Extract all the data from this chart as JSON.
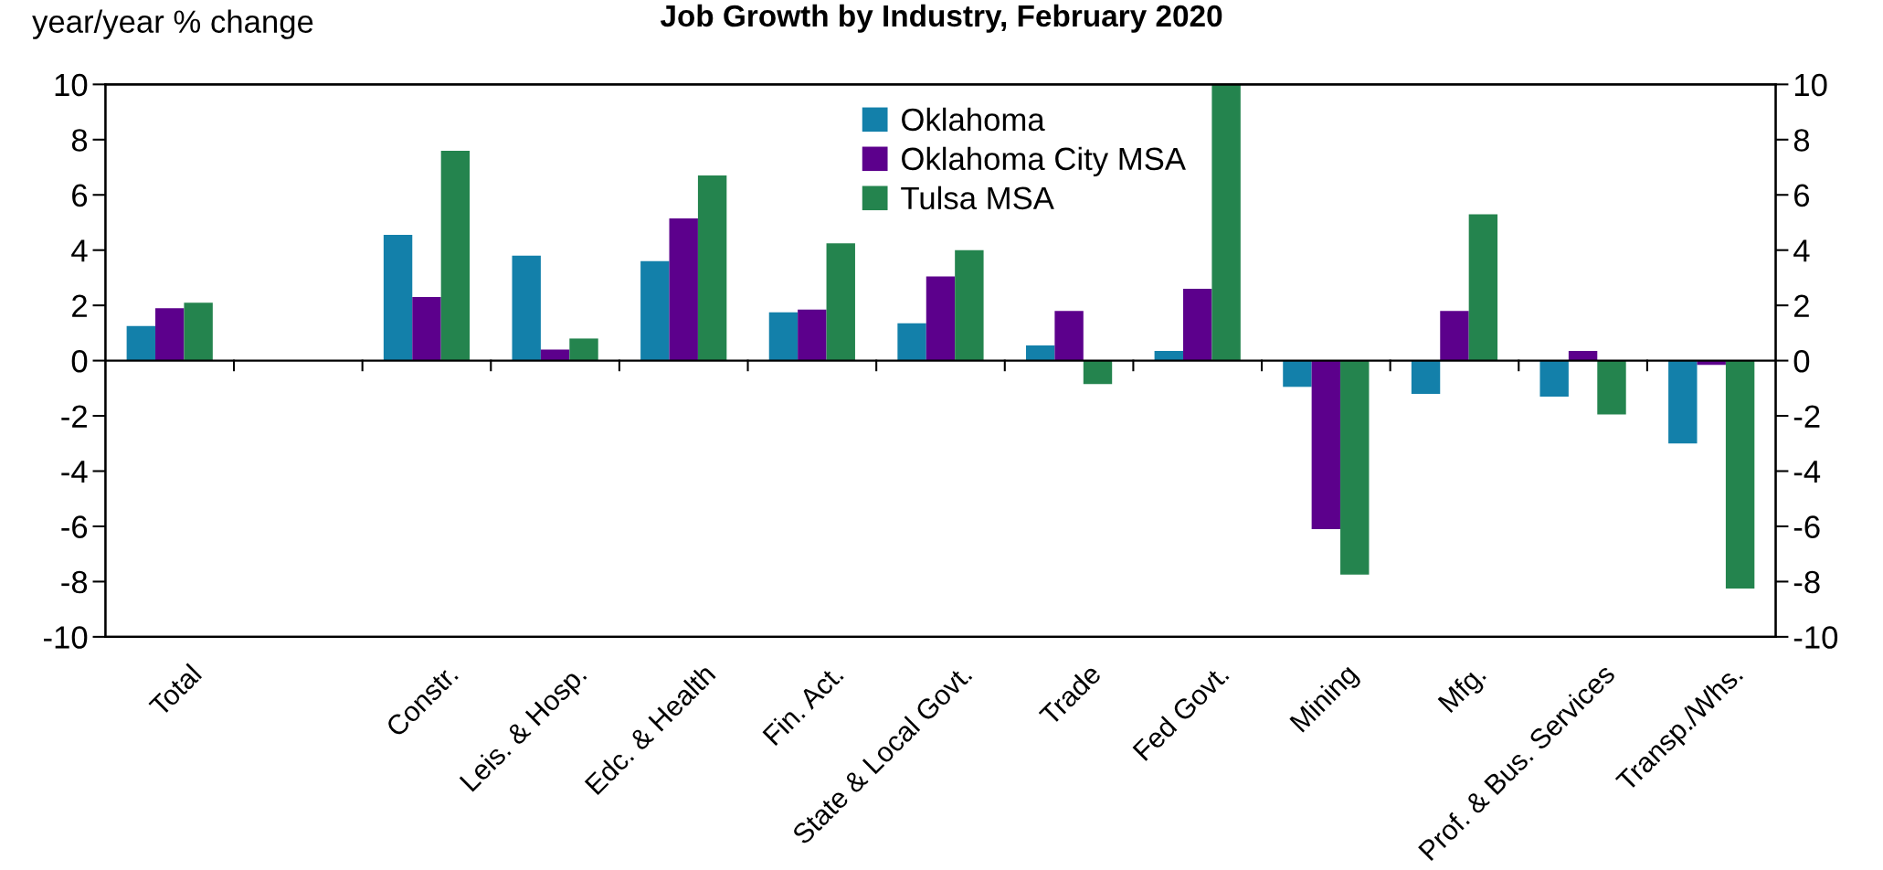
{
  "chart_data": {
    "type": "bar",
    "title": "Job Growth by Industry, February 2020",
    "ylabel": "year/year % change",
    "categories": [
      "Total",
      null,
      "Constr.",
      "Leis. & Hosp.",
      "Edc. & Health",
      "Fin. Act.",
      "State & Local Govt.",
      "Trade",
      "Fed Govt.",
      "Mining",
      "Mfg.",
      "Prof. & Bus. Services",
      "Transp./Whs."
    ],
    "series": [
      {
        "name": "Oklahoma",
        "color": "#1380aa",
        "values": [
          1.25,
          null,
          4.55,
          3.8,
          3.6,
          1.75,
          1.35,
          0.55,
          0.35,
          -0.95,
          -1.2,
          -1.3,
          -3.0
        ]
      },
      {
        "name": "Oklahoma City MSA",
        "color": "#5c008c",
        "values": [
          1.9,
          null,
          2.3,
          0.4,
          5.15,
          1.85,
          3.05,
          1.8,
          2.6,
          -6.1,
          1.8,
          0.35,
          -0.15
        ]
      },
      {
        "name": "Tulsa MSA",
        "color": "#24844e",
        "values": [
          2.1,
          null,
          7.6,
          0.8,
          6.7,
          4.25,
          4.0,
          -0.85,
          10,
          -7.75,
          5.3,
          -1.95,
          -8.25
        ]
      }
    ],
    "ylim": [
      -10,
      10
    ],
    "yticks": [
      -10,
      -8,
      -6,
      -4,
      -2,
      0,
      2,
      4,
      6,
      8,
      10
    ],
    "y2lim": [
      -10,
      10
    ],
    "y2ticks": [
      -10,
      -8,
      -6,
      -4,
      -2,
      0,
      2,
      4,
      6,
      8,
      10
    ],
    "legend": "top"
  }
}
